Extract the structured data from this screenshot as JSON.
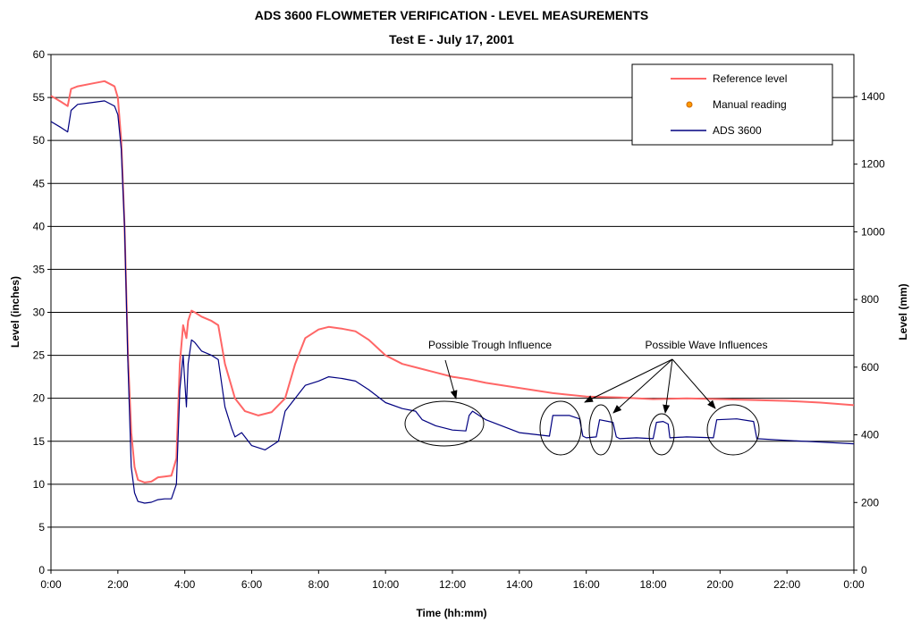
{
  "chart_data": {
    "type": "line",
    "title": "ADS 3600 FLOWMETER VERIFICATION - LEVEL MEASUREMENTS",
    "subtitle": "Test E  -  July 17, 2001",
    "xlabel": "Time (hh:mm)",
    "ylabel": "Level (inches)",
    "y2label": "Level (mm)",
    "xlim": [
      0,
      24
    ],
    "ylim": [
      0,
      60
    ],
    "y2lim": [
      0,
      1524
    ],
    "x_ticks": [
      0,
      2,
      4,
      6,
      8,
      10,
      12,
      14,
      16,
      18,
      20,
      22,
      24
    ],
    "x_tick_labels": [
      "0:00",
      "2:00",
      "4:00",
      "6:00",
      "8:00",
      "10:00",
      "12:00",
      "14:00",
      "16:00",
      "18:00",
      "20:00",
      "22:00",
      "0:00"
    ],
    "y_ticks": [
      0,
      5,
      10,
      15,
      20,
      25,
      30,
      35,
      40,
      45,
      50,
      55,
      60
    ],
    "y2_ticks": [
      0,
      200,
      400,
      600,
      800,
      1000,
      1200,
      1400
    ],
    "grid": "horizontal",
    "legend_position": "top-right",
    "legend": [
      {
        "label": "Reference level",
        "color": "#ff6666",
        "marker": "line"
      },
      {
        "label": "Manual reading",
        "color": "#ff9900",
        "marker": "dot"
      },
      {
        "label": "ADS 3600",
        "color": "#000080",
        "marker": "line"
      }
    ],
    "series": [
      {
        "name": "Reference level",
        "color": "#ff6666",
        "x": [
          0,
          0.3,
          0.5,
          0.6,
          0.8,
          1.2,
          1.6,
          1.9,
          2.0,
          2.1,
          2.2,
          2.3,
          2.4,
          2.5,
          2.6,
          2.8,
          3.0,
          3.2,
          3.4,
          3.6,
          3.75,
          3.85,
          3.95,
          4.05,
          4.1,
          4.2,
          4.3,
          4.5,
          4.8,
          5.0,
          5.2,
          5.5,
          5.8,
          6.2,
          6.6,
          7.0,
          7.3,
          7.6,
          8.0,
          8.3,
          8.7,
          9.1,
          9.5,
          10.0,
          10.5,
          11.0,
          11.5,
          12.0,
          12.5,
          13.0,
          14.0,
          15.0,
          16.0,
          17.0,
          18.0,
          19.0,
          20.0,
          21.0,
          22.0,
          23.0,
          24.0
        ],
        "y": [
          55.2,
          54.5,
          54.0,
          56.0,
          56.3,
          56.6,
          56.9,
          56.3,
          55.0,
          50.0,
          40.0,
          25.0,
          16.0,
          12.0,
          10.5,
          10.2,
          10.3,
          10.8,
          10.9,
          11.0,
          13.0,
          24.0,
          28.5,
          27.0,
          29.0,
          30.2,
          30.0,
          29.5,
          29.0,
          28.5,
          24.0,
          20.0,
          18.5,
          18.0,
          18.4,
          20.0,
          24.0,
          27.0,
          28.0,
          28.3,
          28.1,
          27.8,
          26.8,
          25.0,
          24.0,
          23.5,
          23.0,
          22.5,
          22.2,
          21.8,
          21.2,
          20.6,
          20.2,
          20.1,
          19.9,
          20.0,
          19.9,
          19.8,
          19.7,
          19.5,
          19.2
        ]
      },
      {
        "name": "ADS 3600",
        "color": "#000080",
        "x": [
          0,
          0.3,
          0.5,
          0.6,
          0.8,
          1.2,
          1.6,
          1.9,
          2.0,
          2.1,
          2.2,
          2.3,
          2.4,
          2.5,
          2.6,
          2.8,
          3.0,
          3.2,
          3.4,
          3.6,
          3.75,
          3.85,
          3.95,
          4.05,
          4.1,
          4.2,
          4.3,
          4.5,
          4.8,
          5.0,
          5.2,
          5.4,
          5.5,
          5.7,
          6.0,
          6.4,
          6.8,
          7.0,
          7.3,
          7.6,
          8.0,
          8.3,
          8.7,
          9.1,
          9.5,
          10.0,
          10.5,
          10.9,
          11.1,
          11.5,
          12.0,
          12.4,
          12.5,
          12.6,
          13.0,
          14.0,
          14.9,
          15.0,
          15.5,
          15.8,
          15.9,
          16.0,
          16.3,
          16.4,
          16.8,
          16.9,
          17.0,
          17.5,
          18.0,
          18.1,
          18.3,
          18.45,
          18.5,
          19.0,
          19.8,
          19.9,
          20.5,
          21.0,
          21.1,
          22.0,
          23.0,
          24.0
        ],
        "y": [
          52.2,
          51.5,
          51.0,
          53.5,
          54.2,
          54.4,
          54.6,
          54.0,
          53.0,
          49.0,
          40.0,
          24.0,
          12.0,
          9.0,
          8.0,
          7.8,
          7.9,
          8.2,
          8.3,
          8.3,
          10.0,
          21.0,
          25.0,
          19.0,
          24.0,
          26.8,
          26.5,
          25.5,
          25.0,
          24.5,
          19.0,
          16.5,
          15.5,
          16.0,
          14.5,
          14.0,
          15.0,
          18.5,
          20.0,
          21.5,
          22.0,
          22.5,
          22.3,
          22.0,
          21.0,
          19.5,
          18.8,
          18.5,
          17.5,
          16.8,
          16.3,
          16.2,
          18.0,
          18.5,
          17.5,
          16.0,
          15.6,
          18.0,
          18.0,
          17.6,
          15.6,
          15.4,
          15.5,
          17.5,
          17.2,
          15.5,
          15.3,
          15.4,
          15.3,
          17.2,
          17.3,
          17.0,
          15.4,
          15.5,
          15.4,
          17.5,
          17.6,
          17.3,
          15.3,
          15.1,
          14.9,
          14.7
        ]
      },
      {
        "name": "Manual reading",
        "color": "#ff9900",
        "x": [],
        "y": []
      }
    ],
    "annotations": [
      {
        "text": "Possible Trough Influence",
        "x": 12.0,
        "y": 25.7
      },
      {
        "text": "Possible Wave Influences",
        "x": 19.8,
        "y": 25.7
      }
    ]
  }
}
